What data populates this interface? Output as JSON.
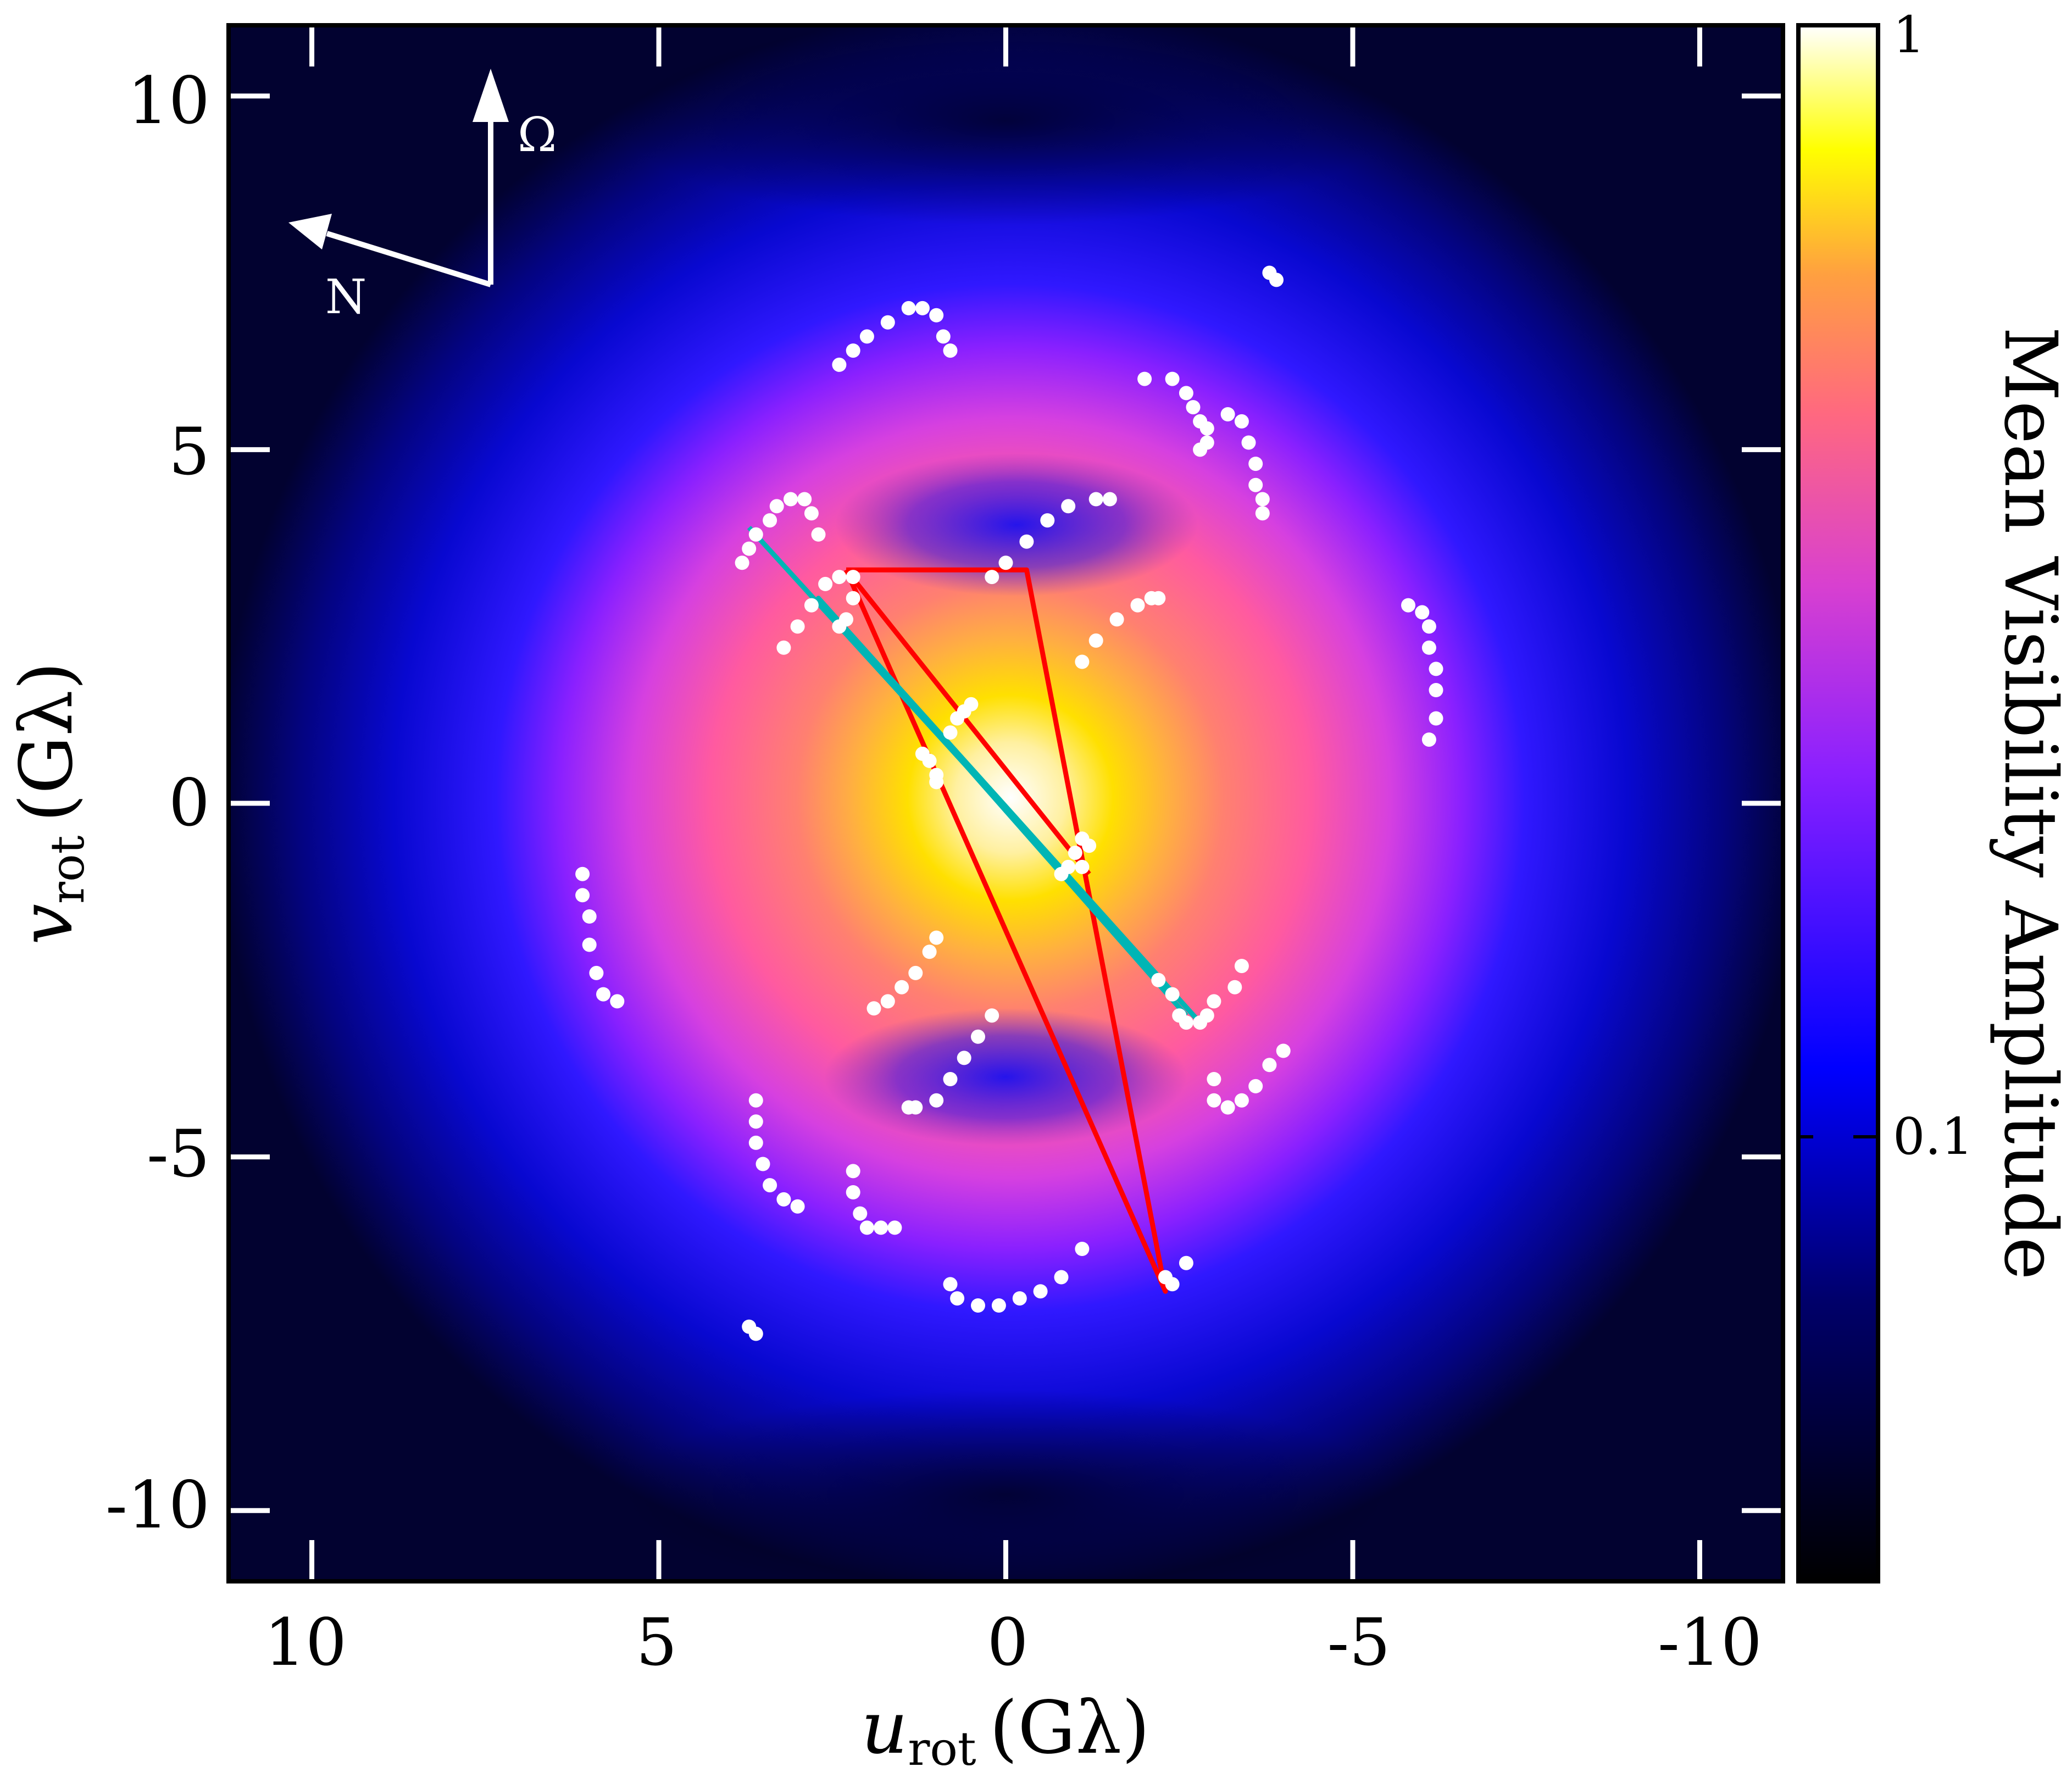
{
  "chart_data": {
    "type": "heatmap",
    "title": "",
    "xlabel": {
      "var": "u",
      "sub": "rot",
      "unit": "(Gλ)"
    },
    "ylabel": {
      "var": "v",
      "sub": "rot",
      "unit": "(Gλ)"
    },
    "xlim": [
      11.2,
      -11.2
    ],
    "ylim": [
      -11,
      11
    ],
    "x_ticks": [
      10,
      5,
      0,
      -5,
      -10
    ],
    "x_tick_labels": [
      "10",
      "5",
      "0",
      "-5",
      "-10"
    ],
    "y_ticks": [
      10,
      5,
      0,
      -5,
      -10
    ],
    "y_tick_labels": [
      "10",
      "5",
      "0",
      "-5",
      "-10"
    ],
    "grid": false,
    "colorbar": {
      "label": "Mean Visibility Amplitude",
      "scale": "log",
      "range": [
        0.025,
        1
      ],
      "ticks": [
        1,
        0.1
      ],
      "tick_labels": [
        "1",
        "0.1"
      ],
      "colormap": "gnuplot2"
    },
    "compass": {
      "north_label": "N",
      "spin_label": "Ω",
      "spin_direction_deg": 90,
      "north_direction_deg": 153
    },
    "uv_tracks": [
      [
        [
          3.8,
          3.4
        ],
        [
          3.7,
          3.6
        ],
        [
          3.6,
          3.8
        ],
        [
          3.4,
          4.0
        ],
        [
          3.3,
          4.2
        ],
        [
          3.1,
          4.3
        ],
        [
          2.9,
          4.3
        ],
        [
          2.8,
          4.1
        ],
        [
          2.7,
          3.8
        ]
      ],
      [
        [
          3.2,
          2.2
        ],
        [
          3.0,
          2.5
        ],
        [
          2.8,
          2.8
        ],
        [
          2.6,
          3.1
        ],
        [
          2.4,
          3.2
        ],
        [
          2.2,
          3.2
        ],
        [
          2.2,
          2.9
        ],
        [
          2.3,
          2.6
        ],
        [
          2.4,
          2.5
        ]
      ],
      [
        [
          2.4,
          6.2
        ],
        [
          2.2,
          6.4
        ],
        [
          2.0,
          6.6
        ],
        [
          1.7,
          6.8
        ],
        [
          1.4,
          7.0
        ],
        [
          1.2,
          7.0
        ],
        [
          1.0,
          6.9
        ],
        [
          0.9,
          6.6
        ],
        [
          0.8,
          6.4
        ]
      ],
      [
        [
          0.2,
          3.2
        ],
        [
          0.0,
          3.4
        ],
        [
          -0.3,
          3.7
        ],
        [
          -0.6,
          4.0
        ],
        [
          -0.9,
          4.2
        ],
        [
          -1.3,
          4.3
        ],
        [
          -1.5,
          4.3
        ]
      ],
      [
        [
          -1.1,
          2.0
        ],
        [
          -1.3,
          2.3
        ],
        [
          -1.6,
          2.6
        ],
        [
          -1.9,
          2.8
        ],
        [
          -2.1,
          2.9
        ],
        [
          -2.2,
          2.9
        ]
      ],
      [
        [
          -2.0,
          6.0
        ],
        [
          -2.4,
          6.0
        ],
        [
          -2.6,
          5.8
        ],
        [
          -2.7,
          5.6
        ],
        [
          -2.8,
          5.4
        ],
        [
          -2.9,
          5.3
        ],
        [
          -2.9,
          5.1
        ],
        [
          -2.8,
          5.0
        ]
      ],
      [
        [
          -3.2,
          5.5
        ],
        [
          -3.4,
          5.4
        ],
        [
          -3.5,
          5.1
        ],
        [
          -3.6,
          4.8
        ],
        [
          -3.6,
          4.5
        ],
        [
          -3.7,
          4.3
        ],
        [
          -3.7,
          4.1
        ]
      ],
      [
        [
          -3.8,
          7.5
        ],
        [
          -3.9,
          7.4
        ]
      ],
      [
        [
          -5.8,
          2.8
        ],
        [
          -6.0,
          2.7
        ],
        [
          -6.1,
          2.5
        ],
        [
          -6.1,
          2.2
        ],
        [
          -6.2,
          1.9
        ],
        [
          -6.2,
          1.6
        ],
        [
          -6.2,
          1.2
        ],
        [
          -6.1,
          0.9
        ]
      ],
      [
        [
          0.8,
          1.0
        ],
        [
          0.7,
          1.2
        ],
        [
          0.6,
          1.3
        ],
        [
          0.5,
          1.4
        ]
      ],
      [
        [
          1.2,
          0.7
        ],
        [
          1.1,
          0.6
        ],
        [
          1.0,
          0.4
        ],
        [
          1.0,
          0.3
        ]
      ],
      [
        [
          -0.8,
          -1.0
        ],
        [
          -0.9,
          -0.9
        ],
        [
          -1.0,
          -0.7
        ],
        [
          -1.1,
          -0.5
        ]
      ],
      [
        [
          -1.1,
          -0.9
        ],
        [
          -1.2,
          -0.6
        ]
      ],
      [
        [
          6.1,
          -1.0
        ],
        [
          6.1,
          -1.3
        ],
        [
          6.0,
          -1.6
        ],
        [
          6.0,
          -2.0
        ],
        [
          5.9,
          -2.4
        ],
        [
          5.8,
          -2.7
        ],
        [
          5.6,
          -2.8
        ]
      ],
      [
        [
          1.9,
          -2.9
        ],
        [
          1.7,
          -2.8
        ],
        [
          1.5,
          -2.6
        ],
        [
          1.3,
          -2.4
        ],
        [
          1.1,
          -2.1
        ],
        [
          1.0,
          -1.9
        ]
      ],
      [
        [
          0.2,
          -3.0
        ],
        [
          0.4,
          -3.3
        ],
        [
          0.6,
          -3.6
        ],
        [
          0.8,
          -3.9
        ],
        [
          1.0,
          -4.2
        ],
        [
          1.3,
          -4.3
        ],
        [
          1.4,
          -4.3
        ]
      ],
      [
        [
          -2.2,
          -2.5
        ],
        [
          -2.4,
          -2.7
        ],
        [
          -2.5,
          -3.0
        ],
        [
          -2.6,
          -3.1
        ],
        [
          -2.8,
          -3.1
        ],
        [
          -2.9,
          -3.0
        ],
        [
          -3.0,
          -2.8
        ]
      ],
      [
        [
          -3.4,
          -2.3
        ],
        [
          -3.3,
          -2.6
        ]
      ],
      [
        [
          -4.0,
          -3.5
        ],
        [
          -3.8,
          -3.7
        ],
        [
          -3.6,
          -4.0
        ],
        [
          -3.4,
          -4.2
        ],
        [
          -3.2,
          -4.3
        ],
        [
          -3.0,
          -4.2
        ],
        [
          -3.0,
          -3.9
        ]
      ],
      [
        [
          3.6,
          -4.2
        ],
        [
          3.6,
          -4.5
        ],
        [
          3.6,
          -4.8
        ],
        [
          3.5,
          -5.1
        ],
        [
          3.4,
          -5.4
        ],
        [
          3.2,
          -5.6
        ],
        [
          3.0,
          -5.7
        ]
      ],
      [
        [
          2.2,
          -5.2
        ],
        [
          2.2,
          -5.5
        ],
        [
          2.1,
          -5.8
        ],
        [
          2.0,
          -6.0
        ],
        [
          1.8,
          -6.0
        ],
        [
          1.6,
          -6.0
        ]
      ],
      [
        [
          0.8,
          -6.8
        ],
        [
          0.7,
          -7.0
        ],
        [
          0.4,
          -7.1
        ],
        [
          0.1,
          -7.1
        ],
        [
          -0.2,
          -7.0
        ],
        [
          -0.5,
          -6.9
        ],
        [
          -0.8,
          -6.7
        ],
        [
          -1.1,
          -6.3
        ]
      ],
      [
        [
          -2.6,
          -6.5
        ],
        [
          -2.4,
          -6.8
        ],
        [
          -2.3,
          -6.7
        ]
      ],
      [
        [
          3.7,
          -7.4
        ],
        [
          3.6,
          -7.5
        ]
      ]
    ],
    "triangles": [
      {
        "color": "#ff0000",
        "vertices": [
          [
            2.3,
            3.3
          ],
          [
            -0.3,
            3.3
          ],
          [
            -2.3,
            -6.9
          ],
          [
            2.3,
            3.3
          ]
        ]
      },
      {
        "color": "#ff0000",
        "vertices": [
          [
            2.3,
            3.3
          ],
          [
            -1.2,
            -1.0
          ]
        ]
      },
      {
        "color": "#00b5b5",
        "vertices": [
          [
            3.7,
            3.9
          ],
          [
            -2.8,
            -3.1
          ],
          [
            2.7,
            2.9
          ],
          [
            -2.6,
            -3.0
          ]
        ]
      }
    ]
  }
}
